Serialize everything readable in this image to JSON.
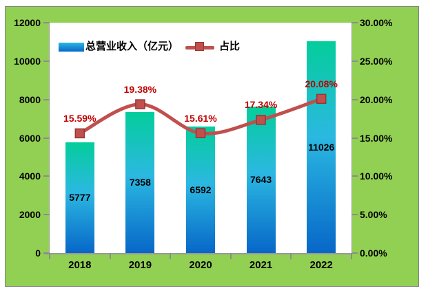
{
  "chart_data": {
    "type": "combo",
    "categories": [
      "2018",
      "2019",
      "2020",
      "2021",
      "2022"
    ],
    "series": [
      {
        "name": "总营业收入（亿元）",
        "type": "bar",
        "axis": "left",
        "values": [
          5777,
          7358,
          6592,
          7643,
          11026
        ],
        "labels": [
          "5777",
          "7358",
          "6592",
          "7643",
          "11026"
        ]
      },
      {
        "name": "占比",
        "type": "line",
        "axis": "right",
        "smooth": true,
        "values": [
          15.59,
          19.38,
          15.61,
          17.34,
          20.08
        ],
        "labels": [
          "15.59%",
          "19.38%",
          "15.61%",
          "17.34%",
          "20.08%"
        ]
      }
    ],
    "left_axis": {
      "min": 0,
      "max": 12000,
      "step": 2000,
      "ticks": [
        "0",
        "2000",
        "4000",
        "6000",
        "8000",
        "10000",
        "12000"
      ]
    },
    "right_axis": {
      "min": 0,
      "max": 30,
      "step": 5,
      "ticks": [
        "0.00%",
        "5.00%",
        "10.00%",
        "15.00%",
        "20.00%",
        "25.00%",
        "30.00%"
      ]
    },
    "legend_position": "top-inside",
    "gridlines": false,
    "title": ""
  },
  "colors": {
    "background": "#92D053",
    "plot_bg": "#FFFFFF",
    "panel_border": "#808080",
    "axis_line": "#9A9A9A",
    "tick": "#8C8C8C",
    "bar_gradient_top": "#04CD9B",
    "bar_gradient_mid": "#2BB8E1",
    "bar_gradient_bottom": "#0767C8",
    "line": "#C0504D",
    "marker_border": "#953735",
    "pct_label": "#C00000",
    "value_label": "#000000",
    "axis_text": "#000000"
  }
}
